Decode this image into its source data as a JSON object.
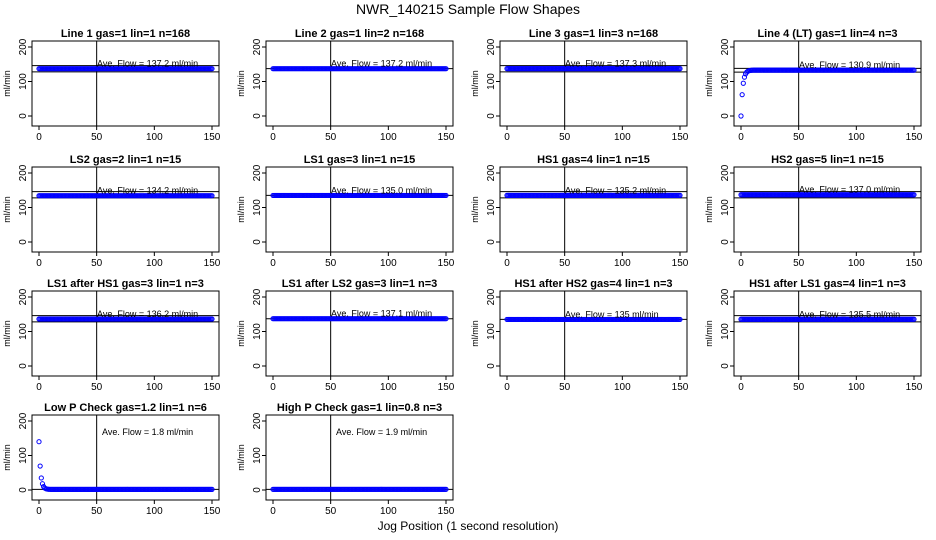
{
  "figure": {
    "title": "NWR_140215  Sample Flow Shapes",
    "xlabel": "Jog Position (1 second resolution)"
  },
  "chart_data": [
    {
      "type": "scatter",
      "title": "Line 1 gas=1 lin=1 n=168",
      "annotation": "Ave. Flow = 137.2  ml/min",
      "ylabel": "ml/min",
      "xlim": [
        0,
        150
      ],
      "ylim": [
        0,
        200
      ],
      "xticks": [
        "0",
        "50",
        "100",
        "150"
      ],
      "yticks": [
        "0",
        "100",
        "200"
      ],
      "vline": 50,
      "hlines": [
        128,
        146
      ],
      "shape": "flat",
      "level": 137.2
    },
    {
      "type": "scatter",
      "title": "Line 2 gas=1 lin=2 n=168",
      "annotation": "Ave. Flow = 137.2  ml/min",
      "ylabel": "ml/min",
      "xlim": [
        0,
        150
      ],
      "ylim": [
        0,
        200
      ],
      "xticks": [
        "0",
        "50",
        "100",
        "150"
      ],
      "yticks": [
        "0",
        "100",
        "200"
      ],
      "vline": 50,
      "hlines": [
        137.2
      ],
      "shape": "flat",
      "level": 137.2
    },
    {
      "type": "scatter",
      "title": "Line 3 gas=1 lin=3 n=168",
      "annotation": "Ave. Flow = 137.3  ml/min",
      "ylabel": "ml/min",
      "xlim": [
        0,
        150
      ],
      "ylim": [
        0,
        200
      ],
      "xticks": [
        "0",
        "50",
        "100",
        "150"
      ],
      "yticks": [
        "0",
        "100",
        "200"
      ],
      "vline": 50,
      "hlines": [
        128,
        146
      ],
      "shape": "flat",
      "level": 137.3
    },
    {
      "type": "scatter",
      "title": "Line 4 (LT) gas=1 lin=4 n=3",
      "annotation": "Ave. Flow = 130.9  ml/min",
      "ylabel": "ml/min",
      "xlim": [
        0,
        150
      ],
      "ylim": [
        0,
        200
      ],
      "xticks": [
        "0",
        "50",
        "100",
        "150"
      ],
      "yticks": [
        "0",
        "100",
        "200"
      ],
      "vline": 50,
      "hlines": [
        127,
        138
      ],
      "shape": "rise",
      "level": 133,
      "start": 0
    },
    {
      "type": "scatter",
      "title": "LS2 gas=2 lin=1 n=15",
      "annotation": "Ave. Flow = 134.2  ml/min",
      "ylabel": "ml/min",
      "xlim": [
        0,
        150
      ],
      "ylim": [
        0,
        200
      ],
      "xticks": [
        "0",
        "50",
        "100",
        "150"
      ],
      "yticks": [
        "0",
        "100",
        "200"
      ],
      "vline": 50,
      "hlines": [
        128,
        146
      ],
      "shape": "flat",
      "level": 134.2
    },
    {
      "type": "scatter",
      "title": "LS1 gas=3 lin=1 n=15",
      "annotation": "Ave. Flow = 135.0  ml/min",
      "ylabel": "ml/min",
      "xlim": [
        0,
        150
      ],
      "ylim": [
        0,
        200
      ],
      "xticks": [
        "0",
        "50",
        "100",
        "150"
      ],
      "yticks": [
        "0",
        "100",
        "200"
      ],
      "vline": 50,
      "hlines": [
        135
      ],
      "shape": "flat",
      "level": 135.0
    },
    {
      "type": "scatter",
      "title": "HS1 gas=4 lin=1 n=15",
      "annotation": "Ave. Flow = 135.2  ml/min",
      "ylabel": "ml/min",
      "xlim": [
        0,
        150
      ],
      "ylim": [
        0,
        200
      ],
      "xticks": [
        "0",
        "50",
        "100",
        "150"
      ],
      "yticks": [
        "0",
        "100",
        "200"
      ],
      "vline": 50,
      "hlines": [
        128,
        146
      ],
      "shape": "flat",
      "level": 135.2
    },
    {
      "type": "scatter",
      "title": "HS2 gas=5 lin=1 n=15",
      "annotation": "Ave. Flow = 137.0  ml/min",
      "ylabel": "ml/min",
      "xlim": [
        0,
        150
      ],
      "ylim": [
        0,
        200
      ],
      "xticks": [
        "0",
        "50",
        "100",
        "150"
      ],
      "yticks": [
        "0",
        "100",
        "200"
      ],
      "vline": 50,
      "hlines": [
        128,
        146
      ],
      "shape": "flat",
      "level": 137.0
    },
    {
      "type": "scatter",
      "title": "LS1 after HS1 gas=3 lin=1 n=3",
      "annotation": "Ave. Flow = 136.2  ml/min",
      "ylabel": "ml/min",
      "xlim": [
        0,
        150
      ],
      "ylim": [
        0,
        200
      ],
      "xticks": [
        "0",
        "50",
        "100",
        "150"
      ],
      "yticks": [
        "0",
        "100",
        "200"
      ],
      "vline": 50,
      "hlines": [
        128,
        146
      ],
      "shape": "flat",
      "level": 136.2
    },
    {
      "type": "scatter",
      "title": "LS1 after LS2 gas=3 lin=1 n=3",
      "annotation": "Ave. Flow = 137.1  ml/min",
      "ylabel": "ml/min",
      "xlim": [
        0,
        150
      ],
      "ylim": [
        0,
        200
      ],
      "xticks": [
        "0",
        "50",
        "100",
        "150"
      ],
      "yticks": [
        "0",
        "100",
        "200"
      ],
      "vline": 50,
      "hlines": [
        137.1
      ],
      "shape": "flat",
      "level": 137.1
    },
    {
      "type": "scatter",
      "title": "HS1 after HS2 gas=4 lin=1 n=3",
      "annotation": "Ave. Flow = 135  ml/min",
      "ylabel": "ml/min",
      "xlim": [
        0,
        150
      ],
      "ylim": [
        0,
        200
      ],
      "xticks": [
        "0",
        "50",
        "100",
        "150"
      ],
      "yticks": [
        "0",
        "100",
        "200"
      ],
      "vline": 50,
      "hlines": [
        135
      ],
      "shape": "flat",
      "level": 135
    },
    {
      "type": "scatter",
      "title": "HS1 after LS1 gas=4 lin=1 n=3",
      "annotation": "Ave. Flow = 135.5  ml/min",
      "ylabel": "ml/min",
      "xlim": [
        0,
        150
      ],
      "ylim": [
        0,
        200
      ],
      "xticks": [
        "0",
        "50",
        "100",
        "150"
      ],
      "yticks": [
        "0",
        "100",
        "200"
      ],
      "vline": 50,
      "hlines": [
        128,
        146
      ],
      "shape": "flat",
      "level": 135.5
    },
    {
      "type": "scatter",
      "title": "Low P Check gas=1.2 lin=1 n=6",
      "annotation": "Ave. Flow = 1.8  ml/min",
      "ylabel": "ml/min",
      "xlim": [
        0,
        150
      ],
      "ylim": [
        0,
        200
      ],
      "xticks": [
        "0",
        "50",
        "100",
        "150"
      ],
      "yticks": [
        "0",
        "100",
        "200"
      ],
      "vline": 50,
      "hlines": [
        1.8
      ],
      "shape": "decay",
      "level": 1.8,
      "start": 140
    },
    {
      "type": "scatter",
      "title": "High P Check gas=1 lin=0.8 n=3",
      "annotation": "Ave. Flow = 1.9  ml/min",
      "ylabel": "ml/min",
      "xlim": [
        0,
        150
      ],
      "ylim": [
        0,
        200
      ],
      "xticks": [
        "0",
        "50",
        "100",
        "150"
      ],
      "yticks": [
        "0",
        "100",
        "200"
      ],
      "vline": 50,
      "hlines": [
        1.9
      ],
      "shape": "flat",
      "level": 1.9
    }
  ],
  "colors": {
    "points": "#0000ff",
    "axes": "#000000",
    "text": "#000000"
  }
}
